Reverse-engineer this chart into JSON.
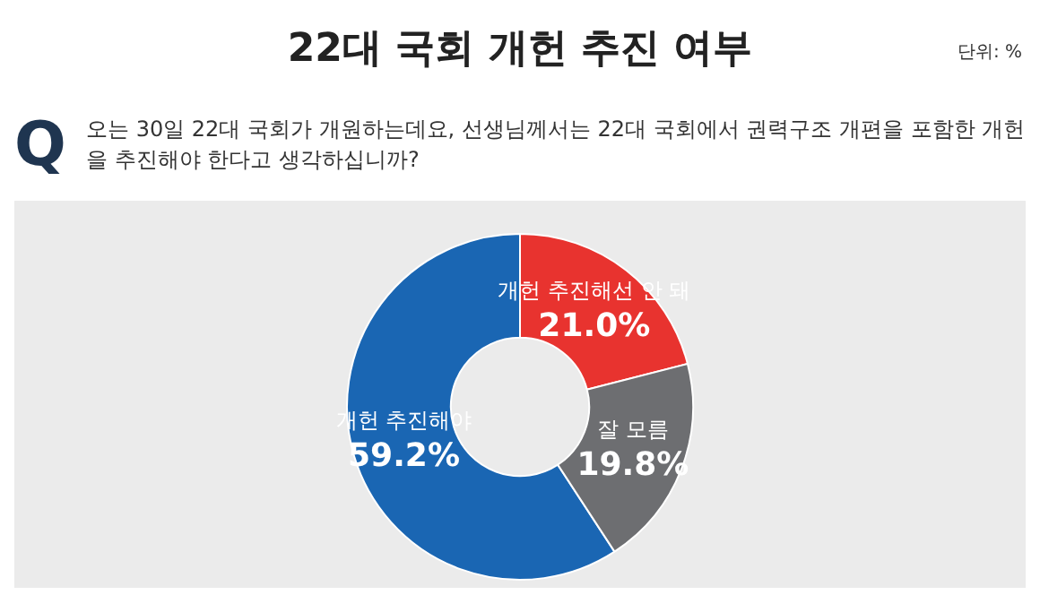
{
  "chart_data": {
    "type": "donut",
    "title": "22대 국회 개헌 추진 여부",
    "subtitle": "오는 30일 22대 국회가 개원하는데요, 선생님께서는 22대 국회에서 권력구조 개편을 포함한 개헌을 추진해야 한다고 생각하십니까?",
    "annotations": [
      "단위: %",
      "Q"
    ],
    "categories": [
      "개헌 추진해야",
      "개헌 추진해선 안 돼",
      "잘 모름"
    ],
    "values": [
      59.2,
      21.0,
      19.8
    ],
    "value_labels": [
      "59.2%",
      "21.0%",
      "19.8%"
    ],
    "colors": [
      "#1a66b3",
      "#e8332f",
      "#6d6e71"
    ],
    "legend": false
  }
}
